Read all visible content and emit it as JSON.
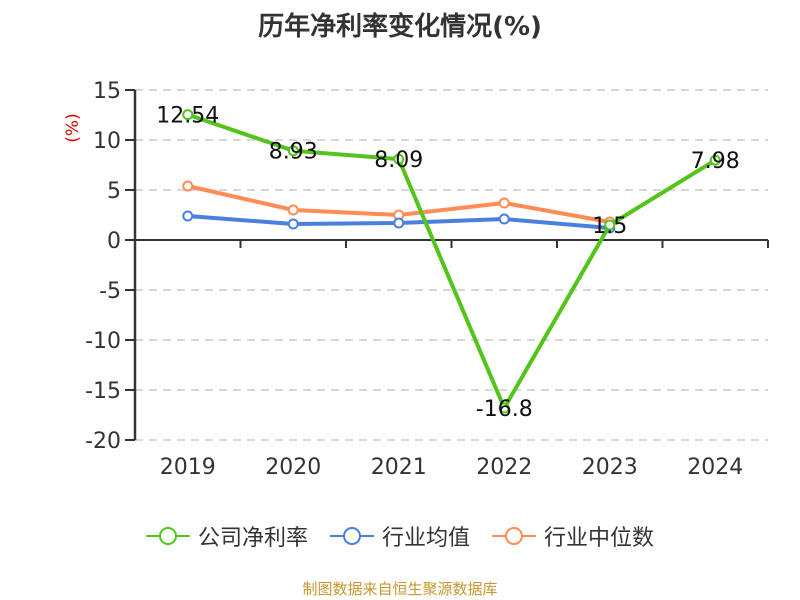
{
  "title": "历年净利率变化情况(%)",
  "y_unit_label": "(%)",
  "footer": "制图数据来自恒生聚源数据库",
  "legend": [
    {
      "label": "公司净利率",
      "color": "#52c41a"
    },
    {
      "label": "行业均值",
      "color": "#4a7fe0"
    },
    {
      "label": "行业中位数",
      "color": "#ff8c55"
    }
  ],
  "chart_data": {
    "type": "line",
    "title": "历年净利率变化情况(%)",
    "xlabel": "",
    "ylabel": "(%)",
    "categories": [
      "2019",
      "2020",
      "2021",
      "2022",
      "2023",
      "2024"
    ],
    "yticks": [
      15,
      10,
      5,
      0,
      -5,
      -10,
      -15,
      -20
    ],
    "ylim": [
      -20,
      15
    ],
    "grid": true,
    "legend_position": "bottom",
    "series": [
      {
        "name": "公司净利率",
        "color": "#52c41a",
        "values": [
          12.54,
          8.93,
          8.09,
          -16.8,
          1.5,
          7.98
        ],
        "labels": [
          "12.54",
          "8.93",
          "8.09",
          "-16.8",
          "1.5",
          "7.98"
        ]
      },
      {
        "name": "行业均值",
        "color": "#4a7fe0",
        "values": [
          2.4,
          1.6,
          1.7,
          2.1,
          1.2,
          null
        ]
      },
      {
        "name": "行业中位数",
        "color": "#ff8c55",
        "values": [
          5.4,
          3.0,
          2.5,
          3.7,
          1.8,
          null
        ]
      }
    ]
  }
}
